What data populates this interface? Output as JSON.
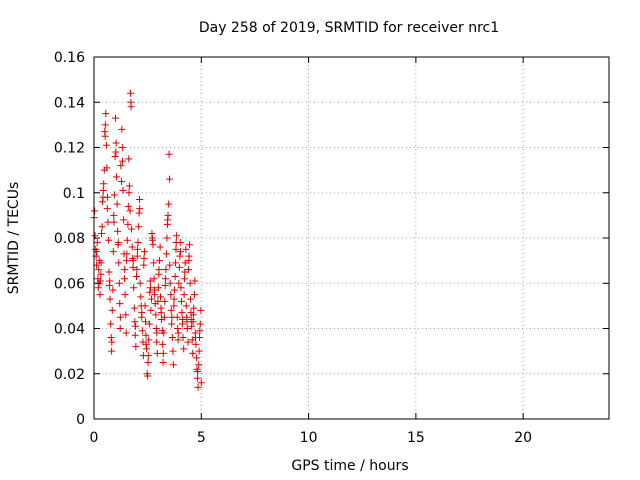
{
  "chart_data": {
    "type": "scatter",
    "title": "Day 258 of 2019, SRMTID for receiver nrc1",
    "xlabel": "GPS time / hours",
    "ylabel": "SRMTID / TECUs",
    "xlim": [
      0,
      24
    ],
    "ylim": [
      0,
      0.16
    ],
    "x_ticks": [
      0,
      5,
      10,
      15,
      20
    ],
    "x_tick_labels": [
      "0",
      "5",
      "10",
      "15",
      "20"
    ],
    "y_ticks": [
      0,
      0.02,
      0.04,
      0.06,
      0.08,
      0.1,
      0.12,
      0.14,
      0.16
    ],
    "y_tick_labels": [
      "0",
      "0.02",
      "0.04",
      "0.06",
      "0.08",
      "0.1",
      "0.12",
      "0.14",
      "0.16"
    ],
    "grid": true,
    "marker": "plus",
    "color": "#e00000",
    "series": [
      {
        "name": "SRMTID",
        "points": [
          [
            0.0,
            0.089
          ],
          [
            0.05,
            0.081
          ],
          [
            0.08,
            0.075
          ],
          [
            0.1,
            0.072
          ],
          [
            0.12,
            0.068
          ],
          [
            0.15,
            0.078
          ],
          [
            0.18,
            0.062
          ],
          [
            0.2,
            0.058
          ],
          [
            0.22,
            0.066
          ],
          [
            0.25,
            0.07
          ],
          [
            0.28,
            0.055
          ],
          [
            0.3,
            0.061
          ],
          [
            0.32,
            0.064
          ],
          [
            0.35,
            0.082
          ],
          [
            0.38,
            0.085
          ],
          [
            0.4,
            0.096
          ],
          [
            0.42,
            0.098
          ],
          [
            0.45,
            0.104
          ],
          [
            0.48,
            0.11
          ],
          [
            0.5,
            0.127
          ],
          [
            0.52,
            0.125
          ],
          [
            0.55,
            0.135
          ],
          [
            0.58,
            0.121
          ],
          [
            0.6,
            0.111
          ],
          [
            0.62,
            0.093
          ],
          [
            0.65,
            0.087
          ],
          [
            0.68,
            0.079
          ],
          [
            0.7,
            0.065
          ],
          [
            0.72,
            0.059
          ],
          [
            0.75,
            0.053
          ],
          [
            0.78,
            0.042
          ],
          [
            0.8,
            0.036
          ],
          [
            0.82,
            0.03
          ],
          [
            0.85,
            0.048
          ],
          [
            0.88,
            0.057
          ],
          [
            0.9,
            0.074
          ],
          [
            0.92,
            0.09
          ],
          [
            0.95,
            0.099
          ],
          [
            0.98,
            0.116
          ],
          [
            1.0,
            0.133
          ],
          [
            1.02,
            0.118
          ],
          [
            1.05,
            0.107
          ],
          [
            1.08,
            0.095
          ],
          [
            1.1,
            0.083
          ],
          [
            1.12,
            0.077
          ],
          [
            1.15,
            0.069
          ],
          [
            1.18,
            0.06
          ],
          [
            1.2,
            0.051
          ],
          [
            1.22,
            0.04
          ],
          [
            1.25,
            0.112
          ],
          [
            1.28,
            0.105
          ],
          [
            1.3,
            0.128
          ],
          [
            1.32,
            0.12
          ],
          [
            1.35,
            0.101
          ],
          [
            1.38,
            0.088
          ],
          [
            1.4,
            0.073
          ],
          [
            1.42,
            0.062
          ],
          [
            1.45,
            0.055
          ],
          [
            1.48,
            0.046
          ],
          [
            1.5,
            0.038
          ],
          [
            1.52,
            0.07
          ],
          [
            1.55,
            0.079
          ],
          [
            1.58,
            0.086
          ],
          [
            1.6,
            0.094
          ],
          [
            1.62,
            0.115
          ],
          [
            1.65,
            0.103
          ],
          [
            1.68,
            0.092
          ],
          [
            1.7,
            0.144
          ],
          [
            1.72,
            0.14
          ],
          [
            1.75,
            0.084
          ],
          [
            1.78,
            0.076
          ],
          [
            1.8,
            0.071
          ],
          [
            1.82,
            0.067
          ],
          [
            1.85,
            0.058
          ],
          [
            1.88,
            0.049
          ],
          [
            1.9,
            0.043
          ],
          [
            1.92,
            0.037
          ],
          [
            1.95,
            0.032
          ],
          [
            1.98,
            0.063
          ],
          [
            2.0,
            0.066
          ],
          [
            2.02,
            0.072
          ],
          [
            2.05,
            0.078
          ],
          [
            2.08,
            0.085
          ],
          [
            2.1,
            0.091
          ],
          [
            2.12,
            0.097
          ],
          [
            2.15,
            0.06
          ],
          [
            2.18,
            0.054
          ],
          [
            2.2,
            0.05
          ],
          [
            2.22,
            0.045
          ],
          [
            2.25,
            0.039
          ],
          [
            2.28,
            0.034
          ],
          [
            2.3,
            0.028
          ],
          [
            2.32,
            0.068
          ],
          [
            2.35,
            0.074
          ],
          [
            2.38,
            0.05
          ],
          [
            2.4,
            0.043
          ],
          [
            2.42,
            0.037
          ],
          [
            2.45,
            0.031
          ],
          [
            2.48,
            0.02
          ],
          [
            2.5,
            0.019
          ],
          [
            2.52,
            0.025
          ],
          [
            2.55,
            0.035
          ],
          [
            2.58,
            0.042
          ],
          [
            2.6,
            0.056
          ],
          [
            2.62,
            0.061
          ],
          [
            2.65,
            0.048
          ],
          [
            2.68,
            0.053
          ],
          [
            2.7,
            0.082
          ],
          [
            2.72,
            0.08
          ],
          [
            2.75,
            0.077
          ],
          [
            2.78,
            0.069
          ],
          [
            2.8,
            0.062
          ],
          [
            2.82,
            0.057
          ],
          [
            2.85,
            0.051
          ],
          [
            2.88,
            0.046
          ],
          [
            2.9,
            0.04
          ],
          [
            2.92,
            0.034
          ],
          [
            2.95,
            0.029
          ],
          [
            2.98,
            0.052
          ],
          [
            3.0,
            0.058
          ],
          [
            3.02,
            0.064
          ],
          [
            3.05,
            0.07
          ],
          [
            3.08,
            0.076
          ],
          [
            3.1,
            0.054
          ],
          [
            3.12,
            0.049
          ],
          [
            3.15,
            0.044
          ],
          [
            3.18,
            0.039
          ],
          [
            3.2,
            0.033
          ],
          [
            3.22,
            0.025
          ],
          [
            3.25,
            0.038
          ],
          [
            3.28,
            0.045
          ],
          [
            3.3,
            0.052
          ],
          [
            3.32,
            0.059
          ],
          [
            3.35,
            0.066
          ],
          [
            3.38,
            0.073
          ],
          [
            3.4,
            0.08
          ],
          [
            3.42,
            0.086
          ],
          [
            3.45,
            0.09
          ],
          [
            3.48,
            0.095
          ],
          [
            3.5,
            0.117
          ],
          [
            3.52,
            0.106
          ],
          [
            3.55,
            0.06
          ],
          [
            3.58,
            0.055
          ],
          [
            3.6,
            0.048
          ],
          [
            3.62,
            0.042
          ],
          [
            3.65,
            0.036
          ],
          [
            3.68,
            0.03
          ],
          [
            3.7,
            0.024
          ],
          [
            3.72,
            0.05
          ],
          [
            3.75,
            0.057
          ],
          [
            3.78,
            0.063
          ],
          [
            3.8,
            0.069
          ],
          [
            3.82,
            0.075
          ],
          [
            3.85,
            0.081
          ],
          [
            3.88,
            0.045
          ],
          [
            3.9,
            0.04
          ],
          [
            3.92,
            0.035
          ],
          [
            3.95,
            0.06
          ],
          [
            3.98,
            0.067
          ],
          [
            4.0,
            0.072
          ],
          [
            4.02,
            0.078
          ],
          [
            4.05,
            0.058
          ],
          [
            4.08,
            0.052
          ],
          [
            4.1,
            0.047
          ],
          [
            4.12,
            0.042
          ],
          [
            4.15,
            0.036
          ],
          [
            4.18,
            0.031
          ],
          [
            4.2,
            0.055
          ],
          [
            4.22,
            0.062
          ],
          [
            4.25,
            0.069
          ],
          [
            4.28,
            0.075
          ],
          [
            4.3,
            0.05
          ],
          [
            4.32,
            0.045
          ],
          [
            4.35,
            0.04
          ],
          [
            4.38,
            0.034
          ],
          [
            4.4,
            0.066
          ],
          [
            4.42,
            0.07
          ],
          [
            4.45,
            0.077
          ],
          [
            4.48,
            0.06
          ],
          [
            4.5,
            0.053
          ],
          [
            4.52,
            0.047
          ],
          [
            4.55,
            0.041
          ],
          [
            4.58,
            0.035
          ],
          [
            4.6,
            0.029
          ],
          [
            4.62,
            0.043
          ],
          [
            4.65,
            0.049
          ],
          [
            4.68,
            0.055
          ],
          [
            4.7,
            0.061
          ],
          [
            4.72,
            0.038
          ],
          [
            4.75,
            0.033
          ],
          [
            4.78,
            0.027
          ],
          [
            4.8,
            0.022
          ],
          [
            4.82,
            0.018
          ],
          [
            4.85,
            0.014
          ],
          [
            4.88,
            0.024
          ],
          [
            4.9,
            0.03
          ],
          [
            4.92,
            0.036
          ],
          [
            4.95,
            0.042
          ],
          [
            4.98,
            0.048
          ],
          [
            5.0,
            0.016
          ],
          [
            0.03,
            0.092
          ],
          [
            0.13,
            0.074
          ],
          [
            0.23,
            0.06
          ],
          [
            0.33,
            0.069
          ],
          [
            0.43,
            0.101
          ],
          [
            0.53,
            0.13
          ],
          [
            0.63,
            0.098
          ],
          [
            0.73,
            0.061
          ],
          [
            0.83,
            0.034
          ],
          [
            0.93,
            0.087
          ],
          [
            1.03,
            0.122
          ],
          [
            1.13,
            0.078
          ],
          [
            1.23,
            0.045
          ],
          [
            1.33,
            0.114
          ],
          [
            1.43,
            0.066
          ],
          [
            1.53,
            0.073
          ],
          [
            1.63,
            0.1
          ],
          [
            1.73,
            0.138
          ],
          [
            1.83,
            0.07
          ],
          [
            1.93,
            0.041
          ],
          [
            2.03,
            0.075
          ],
          [
            2.13,
            0.093
          ],
          [
            2.23,
            0.047
          ],
          [
            2.33,
            0.071
          ],
          [
            2.43,
            0.033
          ],
          [
            2.53,
            0.028
          ],
          [
            2.63,
            0.058
          ],
          [
            2.73,
            0.079
          ],
          [
            2.83,
            0.055
          ],
          [
            2.93,
            0.038
          ],
          [
            3.03,
            0.066
          ],
          [
            3.13,
            0.047
          ],
          [
            3.23,
            0.029
          ],
          [
            3.33,
            0.062
          ],
          [
            3.43,
            0.088
          ],
          [
            3.53,
            0.068
          ],
          [
            3.63,
            0.045
          ],
          [
            3.73,
            0.053
          ],
          [
            3.83,
            0.078
          ],
          [
            3.93,
            0.038
          ],
          [
            4.03,
            0.074
          ],
          [
            4.13,
            0.044
          ],
          [
            4.23,
            0.065
          ],
          [
            4.33,
            0.043
          ],
          [
            4.43,
            0.072
          ],
          [
            4.53,
            0.044
          ],
          [
            4.63,
            0.046
          ],
          [
            4.73,
            0.036
          ],
          [
            4.83,
            0.021
          ],
          [
            4.93,
            0.039
          ]
        ]
      }
    ]
  }
}
